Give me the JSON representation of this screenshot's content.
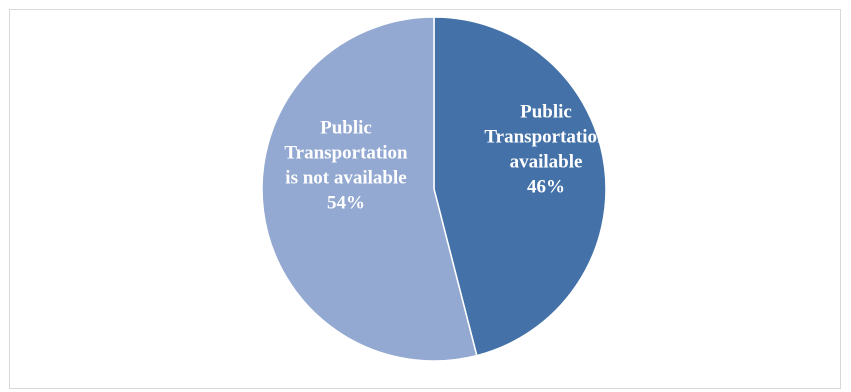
{
  "chart_data": {
    "type": "pie",
    "title": "",
    "slices": [
      {
        "label_lines": [
          "Public",
          "Transportation",
          "available",
          "46%"
        ],
        "category": "Public Transportation available",
        "value": 46,
        "color": "#4472a8"
      },
      {
        "label_lines": [
          "Public",
          "Transportation",
          "is not available",
          "54%"
        ],
        "category": "Public Transportation is not available",
        "value": 54,
        "color": "#93a9d1"
      }
    ],
    "legend": "none",
    "start_angle": "12 o'clock",
    "direction": "clockwise"
  }
}
